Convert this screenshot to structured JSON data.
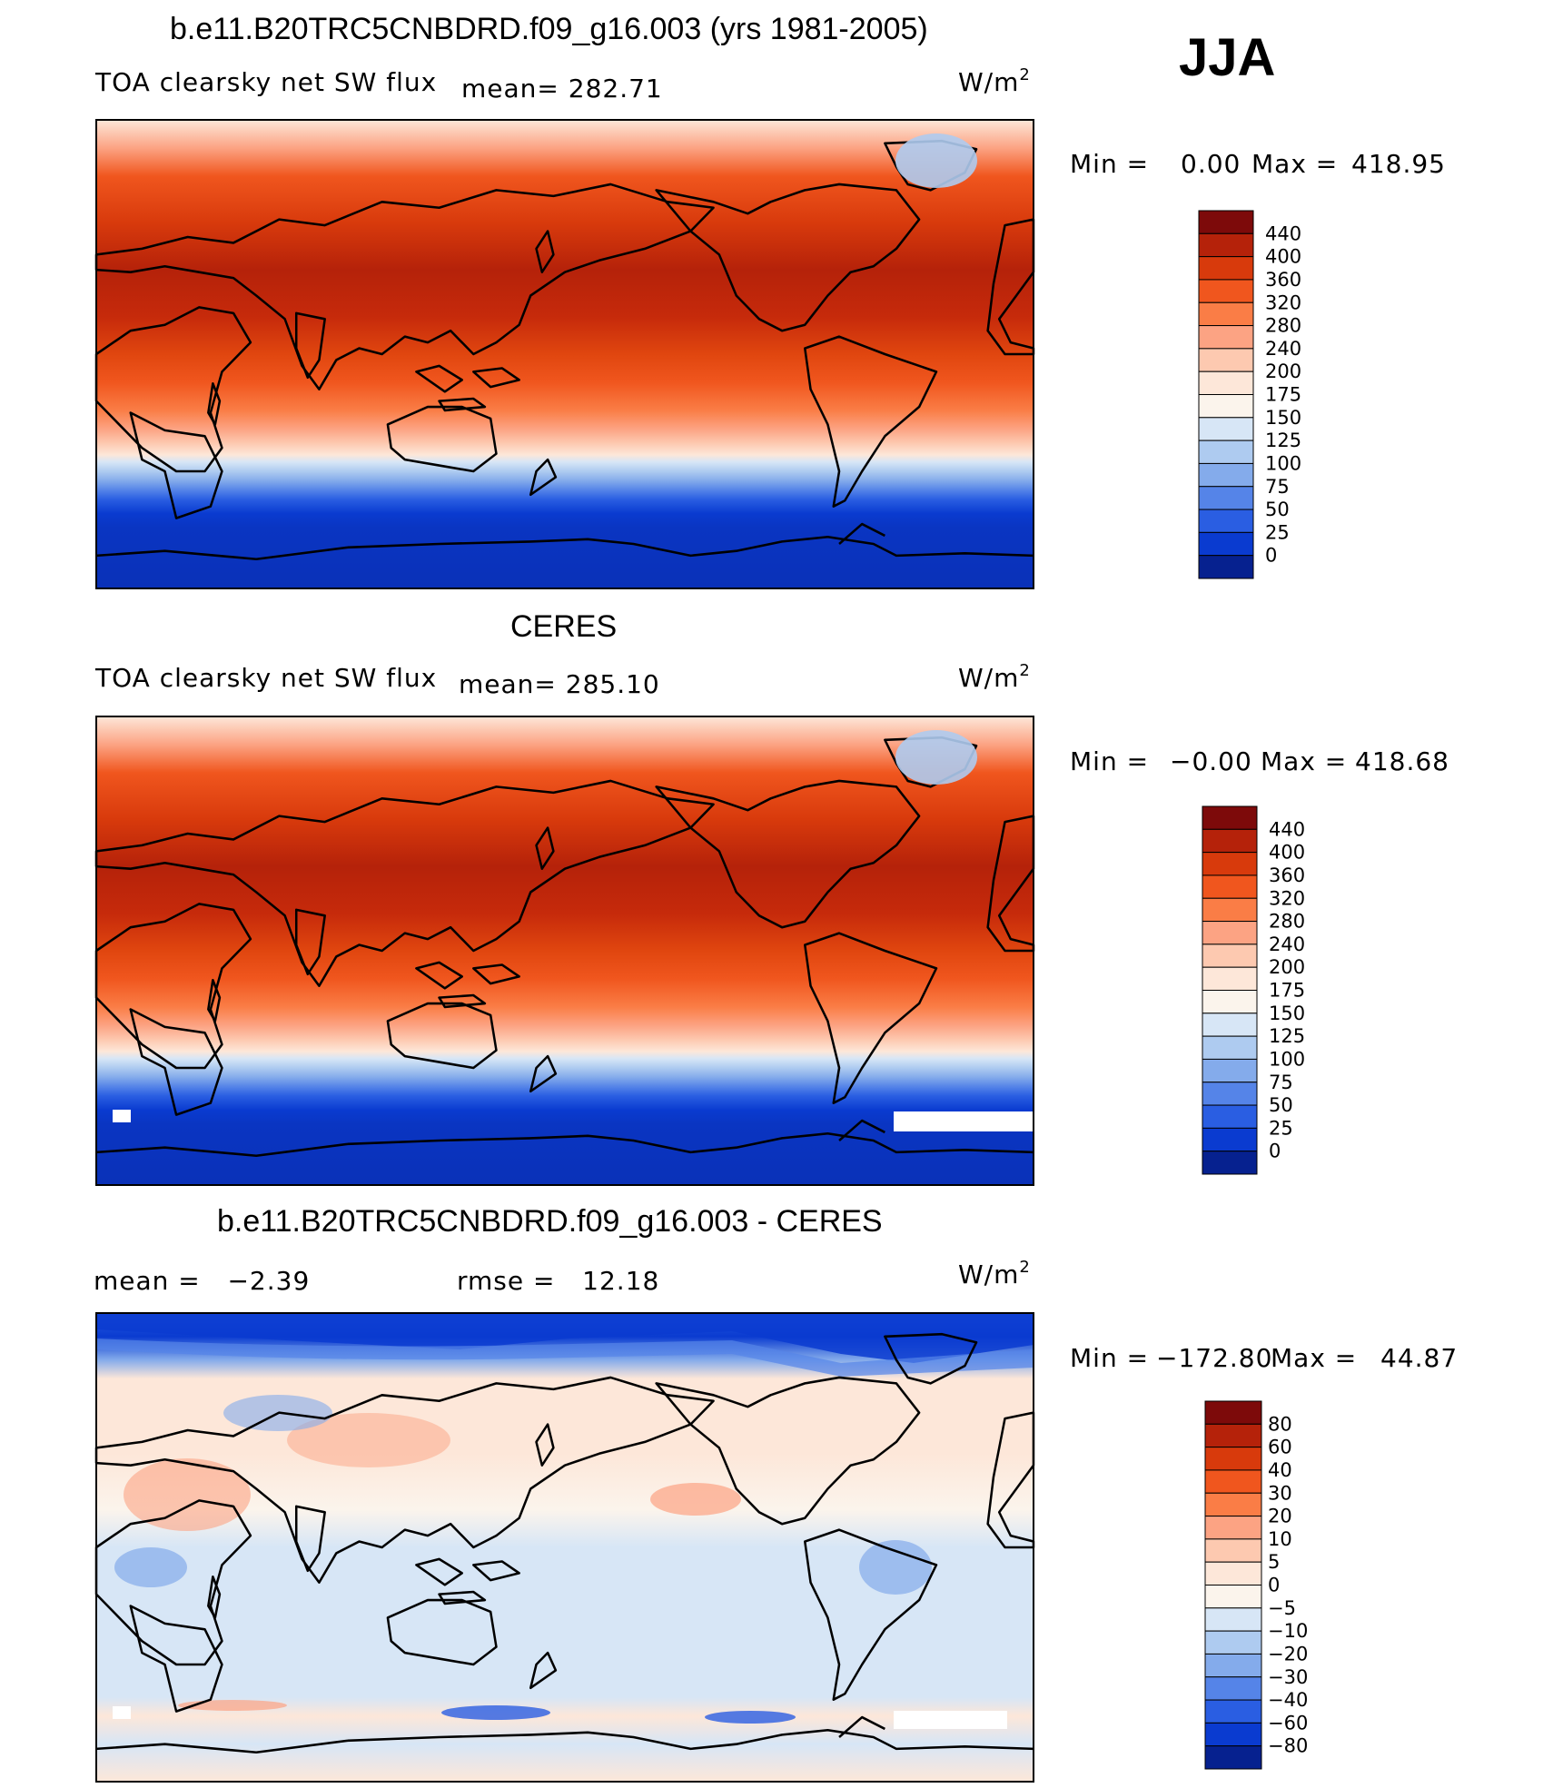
{
  "header": {
    "title": "b.e11.B20TRC5CNBDRD.f09_g16.003 (yrs 1981-2005)",
    "season": "JJA"
  },
  "panels": [
    {
      "id": "model",
      "title": "",
      "left_label": "TOA clearsky net SW flux",
      "mean_label": "mean= 282.71",
      "units": "W/m",
      "minmax": {
        "min_label": "Min =",
        "min_value": "0.00",
        "max_label": "Max =",
        "max_value": "418.95"
      },
      "colorbar": {
        "labels": [
          "440",
          "400",
          "360",
          "320",
          "280",
          "240",
          "200",
          "175",
          "150",
          "125",
          "100",
          "75",
          "50",
          "25",
          "0"
        ],
        "colors": [
          "#7d0a0a",
          "#b5220a",
          "#d83a0c",
          "#f0561e",
          "#fa7d46",
          "#fca383",
          "#fdc9b0",
          "#fde7d9",
          "#fbf4ec",
          "#d7e6f6",
          "#aecbf0",
          "#84abeb",
          "#5584e8",
          "#2a5ee2",
          "#0a3bd0",
          "#06218f"
        ]
      }
    },
    {
      "id": "obs",
      "title": "CERES",
      "left_label": "TOA clearsky net SW flux",
      "mean_label": "mean= 285.10",
      "units": "W/m",
      "minmax": {
        "min_label": "Min =",
        "min_value": "−0.00",
        "max_label": "Max =",
        "max_value": "418.68"
      },
      "colorbar": {
        "labels": [
          "440",
          "400",
          "360",
          "320",
          "280",
          "240",
          "200",
          "175",
          "150",
          "125",
          "100",
          "75",
          "50",
          "25",
          "0"
        ],
        "colors": [
          "#7d0a0a",
          "#b5220a",
          "#d83a0c",
          "#f0561e",
          "#fa7d46",
          "#fca383",
          "#fdc9b0",
          "#fde7d9",
          "#fbf4ec",
          "#d7e6f6",
          "#aecbf0",
          "#84abeb",
          "#5584e8",
          "#2a5ee2",
          "#0a3bd0",
          "#06218f"
        ]
      }
    },
    {
      "id": "diff",
      "title": "b.e11.B20TRC5CNBDRD.f09_g16.003 - CERES",
      "left_label": "mean =   −2.39",
      "mean_label": "rmse =   12.18",
      "units": "W/m",
      "minmax": {
        "min_label": "Min =",
        "min_value": "−172.80",
        "max_label": "Max =",
        "max_value": "44.87"
      },
      "colorbar": {
        "labels": [
          "80",
          "60",
          "40",
          "30",
          "20",
          "10",
          "5",
          "0",
          "−5",
          "−10",
          "−20",
          "−30",
          "−40",
          "−60",
          "−80"
        ],
        "colors": [
          "#7d0a0a",
          "#b5220a",
          "#d83a0c",
          "#f0561e",
          "#fa7d46",
          "#fca383",
          "#fdc9b0",
          "#fde7d9",
          "#fbf4ec",
          "#d7e6f6",
          "#aecbf0",
          "#84abeb",
          "#5584e8",
          "#2a5ee2",
          "#0a3bd0",
          "#06218f"
        ]
      }
    }
  ]
}
